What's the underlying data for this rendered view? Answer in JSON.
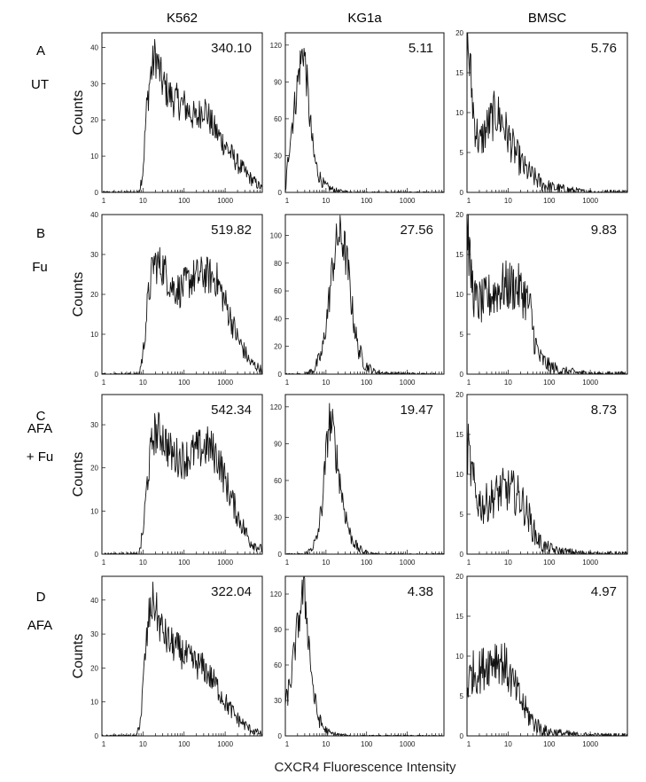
{
  "columns": [
    "K562",
    "KG1a",
    "BMSC"
  ],
  "rows": [
    {
      "letter": "A",
      "treatment": [
        "UT"
      ],
      "mfi": [
        "340.10",
        "5.11",
        "5.76"
      ]
    },
    {
      "letter": "B",
      "treatment": [
        "Fu"
      ],
      "mfi": [
        "519.82",
        "27.56",
        "9.83"
      ]
    },
    {
      "letter": "C",
      "treatment": [
        "AFA",
        "+ Fu"
      ],
      "mfi": [
        "542.34",
        "19.47",
        "8.73"
      ]
    },
    {
      "letter": "D",
      "treatment": [
        "AFA"
      ],
      "mfi": [
        "322.04",
        "4.38",
        "4.97"
      ]
    }
  ],
  "y_label": "Counts",
  "x_label": "CXCR4 Fluorescence Intensity",
  "chart_data": {
    "type": "histogram",
    "x_scale": "log",
    "x_ticks": [
      "1",
      "10",
      "100",
      "1000"
    ],
    "x_range": [
      1,
      8000
    ],
    "grid": false,
    "panels": [
      {
        "row": "A",
        "column": "K562",
        "mfi": "340.10",
        "ylim": [
          0,
          44
        ],
        "yticks": [
          0,
          10,
          20,
          30,
          40
        ],
        "profile": [
          [
            1,
            0
          ],
          [
            8,
            0
          ],
          [
            10,
            6
          ],
          [
            12,
            22
          ],
          [
            15,
            32
          ],
          [
            20,
            38
          ],
          [
            30,
            30
          ],
          [
            50,
            26
          ],
          [
            100,
            24
          ],
          [
            200,
            20
          ],
          [
            300,
            24
          ],
          [
            500,
            18
          ],
          [
            1000,
            13
          ],
          [
            2000,
            8
          ],
          [
            4000,
            4
          ],
          [
            8000,
            1
          ]
        ]
      },
      {
        "row": "A",
        "column": "KG1a",
        "mfi": "5.11",
        "ylim": [
          0,
          130
        ],
        "yticks": [
          0,
          30,
          60,
          90,
          120
        ],
        "profile": [
          [
            1,
            0
          ],
          [
            1.3,
            45
          ],
          [
            1.7,
            70
          ],
          [
            2.2,
            100
          ],
          [
            2.8,
            118
          ],
          [
            3.3,
            95
          ],
          [
            4,
            60
          ],
          [
            5,
            30
          ],
          [
            6.5,
            15
          ],
          [
            9,
            6
          ],
          [
            13,
            3
          ],
          [
            20,
            1
          ],
          [
            50,
            0
          ],
          [
            8000,
            0
          ]
        ]
      },
      {
        "row": "A",
        "column": "BMSC",
        "mfi": "5.76",
        "ylim": [
          0,
          20
        ],
        "yticks": [
          0,
          5,
          10,
          15,
          20
        ],
        "profile": [
          [
            1,
            20
          ],
          [
            1.2,
            15
          ],
          [
            1.5,
            9
          ],
          [
            2,
            6
          ],
          [
            3,
            8
          ],
          [
            5,
            10
          ],
          [
            7,
            9
          ],
          [
            10,
            7
          ],
          [
            15,
            5
          ],
          [
            25,
            3
          ],
          [
            40,
            2
          ],
          [
            70,
            1
          ],
          [
            120,
            0.6
          ],
          [
            300,
            0.3
          ],
          [
            1000,
            0
          ],
          [
            8000,
            0
          ]
        ]
      },
      {
        "row": "B",
        "column": "K562",
        "mfi": "519.82",
        "ylim": [
          0,
          40
        ],
        "yticks": [
          0,
          10,
          20,
          30,
          40
        ],
        "profile": [
          [
            1,
            0
          ],
          [
            8,
            0
          ],
          [
            10,
            5
          ],
          [
            13,
            18
          ],
          [
            18,
            28
          ],
          [
            30,
            27
          ],
          [
            50,
            22
          ],
          [
            80,
            21
          ],
          [
            150,
            24
          ],
          [
            300,
            25
          ],
          [
            600,
            24
          ],
          [
            1000,
            18
          ],
          [
            2000,
            9
          ],
          [
            4000,
            3
          ],
          [
            8000,
            1
          ]
        ]
      },
      {
        "row": "B",
        "column": "KG1a",
        "mfi": "27.56",
        "ylim": [
          0,
          115
        ],
        "yticks": [
          0,
          20,
          40,
          60,
          80,
          100
        ],
        "profile": [
          [
            1,
            0
          ],
          [
            3,
            0
          ],
          [
            5,
            3
          ],
          [
            8,
            15
          ],
          [
            11,
            45
          ],
          [
            15,
            80
          ],
          [
            20,
            100
          ],
          [
            27,
            95
          ],
          [
            35,
            75
          ],
          [
            45,
            45
          ],
          [
            60,
            20
          ],
          [
            90,
            7
          ],
          [
            150,
            2
          ],
          [
            300,
            0.5
          ],
          [
            8000,
            0
          ]
        ]
      },
      {
        "row": "B",
        "column": "BMSC",
        "mfi": "9.83",
        "ylim": [
          0,
          20
        ],
        "yticks": [
          0,
          5,
          10,
          15,
          20
        ],
        "profile": [
          [
            1,
            20
          ],
          [
            1.2,
            13
          ],
          [
            1.6,
            9
          ],
          [
            2.5,
            9
          ],
          [
            4,
            10
          ],
          [
            8,
            11
          ],
          [
            15,
            11
          ],
          [
            25,
            10
          ],
          [
            35,
            8
          ],
          [
            45,
            4
          ],
          [
            60,
            2
          ],
          [
            100,
            1
          ],
          [
            200,
            0.4
          ],
          [
            500,
            0.2
          ],
          [
            1500,
            0
          ],
          [
            8000,
            0
          ]
        ]
      },
      {
        "row": "C",
        "column": "K562",
        "mfi": "542.34",
        "ylim": [
          0,
          37
        ],
        "yticks": [
          0,
          10,
          20,
          30
        ],
        "profile": [
          [
            1,
            0
          ],
          [
            8,
            0
          ],
          [
            10,
            5
          ],
          [
            13,
            18
          ],
          [
            18,
            28
          ],
          [
            28,
            28
          ],
          [
            50,
            23
          ],
          [
            100,
            22
          ],
          [
            200,
            24
          ],
          [
            400,
            25
          ],
          [
            700,
            22
          ],
          [
            1000,
            17
          ],
          [
            2000,
            9
          ],
          [
            4000,
            3
          ],
          [
            8000,
            1
          ]
        ]
      },
      {
        "row": "C",
        "column": "KG1a",
        "mfi": "19.47",
        "ylim": [
          0,
          130
        ],
        "yticks": [
          0,
          30,
          60,
          90,
          120
        ],
        "profile": [
          [
            1,
            0
          ],
          [
            3,
            0
          ],
          [
            4,
            3
          ],
          [
            6,
            12
          ],
          [
            8,
            40
          ],
          [
            10,
            80
          ],
          [
            12,
            110
          ],
          [
            15,
            100
          ],
          [
            20,
            70
          ],
          [
            27,
            40
          ],
          [
            40,
            15
          ],
          [
            60,
            5
          ],
          [
            100,
            1
          ],
          [
            200,
            0
          ],
          [
            8000,
            0
          ]
        ]
      },
      {
        "row": "C",
        "column": "BMSC",
        "mfi": "8.73",
        "ylim": [
          0,
          20
        ],
        "yticks": [
          0,
          5,
          10,
          15,
          20
        ],
        "profile": [
          [
            1,
            14
          ],
          [
            1.3,
            10
          ],
          [
            1.7,
            7
          ],
          [
            2.5,
            6
          ],
          [
            4,
            7
          ],
          [
            7,
            8
          ],
          [
            12,
            8
          ],
          [
            20,
            7
          ],
          [
            30,
            5
          ],
          [
            45,
            2.5
          ],
          [
            70,
            1
          ],
          [
            150,
            0.4
          ],
          [
            400,
            0.2
          ],
          [
            1500,
            0
          ],
          [
            8000,
            0
          ]
        ]
      },
      {
        "row": "D",
        "column": "K562",
        "mfi": "322.04",
        "ylim": [
          0,
          47
        ],
        "yticks": [
          0,
          10,
          20,
          30,
          40
        ],
        "profile": [
          [
            1,
            0
          ],
          [
            7,
            0
          ],
          [
            9,
            6
          ],
          [
            11,
            22
          ],
          [
            14,
            35
          ],
          [
            18,
            40
          ],
          [
            25,
            33
          ],
          [
            40,
            28
          ],
          [
            80,
            25
          ],
          [
            150,
            22
          ],
          [
            300,
            20
          ],
          [
            600,
            15
          ],
          [
            1000,
            10
          ],
          [
            2000,
            5
          ],
          [
            4000,
            2
          ],
          [
            8000,
            0.5
          ]
        ]
      },
      {
        "row": "D",
        "column": "KG1a",
        "mfi": "4.38",
        "ylim": [
          0,
          135
        ],
        "yticks": [
          0,
          30,
          60,
          90,
          120
        ],
        "profile": [
          [
            1,
            25
          ],
          [
            1.4,
            50
          ],
          [
            1.8,
            80
          ],
          [
            2.3,
            105
          ],
          [
            2.8,
            125
          ],
          [
            3.3,
            105
          ],
          [
            4,
            70
          ],
          [
            5,
            35
          ],
          [
            6.5,
            15
          ],
          [
            9,
            6
          ],
          [
            13,
            2
          ],
          [
            25,
            0.5
          ],
          [
            50,
            0
          ],
          [
            8000,
            0
          ]
        ]
      },
      {
        "row": "D",
        "column": "BMSC",
        "mfi": "4.97",
        "ylim": [
          0,
          20
        ],
        "yticks": [
          0,
          5,
          10,
          15,
          20
        ],
        "profile": [
          [
            1,
            6
          ],
          [
            1.3,
            8
          ],
          [
            2,
            8
          ],
          [
            3,
            9
          ],
          [
            5,
            10
          ],
          [
            8,
            9
          ],
          [
            12,
            7
          ],
          [
            18,
            5
          ],
          [
            28,
            3
          ],
          [
            45,
            1.5
          ],
          [
            80,
            0.6
          ],
          [
            200,
            0.3
          ],
          [
            600,
            0.1
          ],
          [
            2000,
            0
          ],
          [
            8000,
            0
          ]
        ]
      }
    ]
  }
}
